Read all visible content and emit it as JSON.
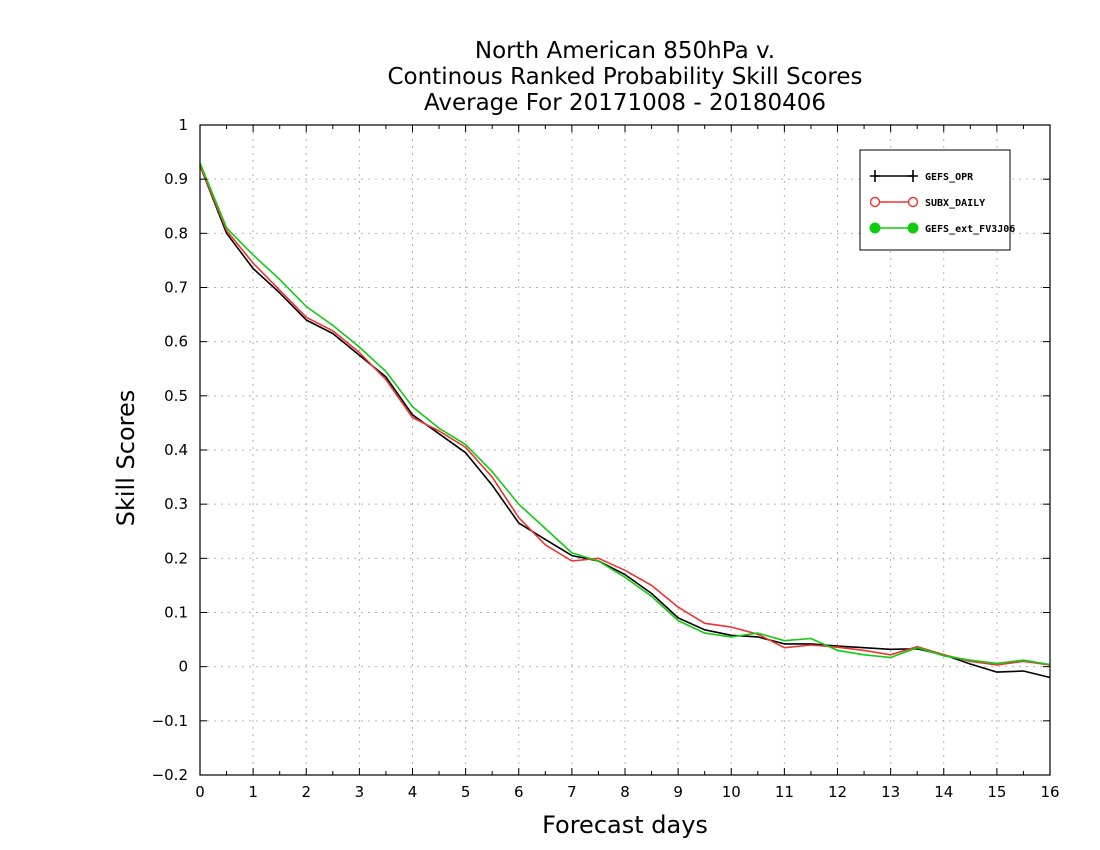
{
  "chart_data": {
    "type": "line",
    "title": [
      "North American 850hPa v.",
      "Continous Ranked Probability Skill Scores",
      "Average For 20171008 - 20180406"
    ],
    "xlabel": "Forecast days",
    "ylabel": "Skill Scores",
    "xlim": [
      0,
      16
    ],
    "ylim": [
      -0.2,
      1
    ],
    "xticks": [
      0,
      1,
      2,
      3,
      4,
      5,
      6,
      7,
      8,
      9,
      10,
      11,
      12,
      13,
      14,
      15,
      16
    ],
    "xtick_labels": [
      "0",
      "1",
      "2",
      "3",
      "4",
      "5",
      "6",
      "7",
      "8",
      "9",
      "10",
      "11",
      "12",
      "13",
      "14",
      "15",
      "16"
    ],
    "yticks": [
      -0.2,
      -0.1,
      0,
      0.1,
      0.2,
      0.3,
      0.4,
      0.5,
      0.6,
      0.7,
      0.8,
      0.9,
      1
    ],
    "ytick_labels": [
      "−0.2",
      "−0.1",
      "0",
      "0.1",
      "0.2",
      "0.3",
      "0.4",
      "0.5",
      "0.6",
      "0.7",
      "0.8",
      "0.9",
      "1"
    ],
    "grid": true,
    "legend_position": "top-right",
    "x": [
      0,
      0.5,
      1,
      1.5,
      2,
      2.5,
      3,
      3.5,
      4,
      4.5,
      5,
      5.5,
      6,
      6.5,
      7,
      7.5,
      8,
      8.5,
      9,
      9.5,
      10,
      10.5,
      11,
      11.5,
      12,
      12.5,
      13,
      13.5,
      14,
      14.5,
      15,
      15.5,
      16
    ],
    "series": [
      {
        "name": "GEFS_OPR",
        "color": "#000000",
        "marker": "plus",
        "values": [
          0.925,
          0.8,
          0.735,
          0.69,
          0.64,
          0.615,
          0.575,
          0.535,
          0.465,
          0.43,
          0.395,
          0.335,
          0.265,
          0.235,
          0.205,
          0.195,
          0.17,
          0.135,
          0.09,
          0.068,
          0.058,
          0.055,
          0.042,
          0.042,
          0.038,
          0.035,
          0.032,
          0.033,
          0.022,
          0.005,
          -0.01,
          -0.008,
          -0.02
        ]
      },
      {
        "name": "SUBX_DAILY",
        "color": "#ee3333",
        "marker": "open-circle",
        "values": [
          0.925,
          0.805,
          0.745,
          0.695,
          0.645,
          0.62,
          0.58,
          0.53,
          0.46,
          0.435,
          0.405,
          0.35,
          0.275,
          0.225,
          0.195,
          0.2,
          0.178,
          0.15,
          0.11,
          0.08,
          0.073,
          0.06,
          0.035,
          0.04,
          0.036,
          0.03,
          0.022,
          0.037,
          0.022,
          0.01,
          0.003,
          0.01,
          0.003
        ]
      },
      {
        "name": "GEFS_ext_FV3J06",
        "color": "#11cc11",
        "marker": "filled-circle",
        "values": [
          0.93,
          0.81,
          0.76,
          0.715,
          0.665,
          0.63,
          0.59,
          0.545,
          0.48,
          0.44,
          0.41,
          0.36,
          0.3,
          0.255,
          0.21,
          0.195,
          0.165,
          0.13,
          0.085,
          0.062,
          0.055,
          0.062,
          0.048,
          0.052,
          0.03,
          0.022,
          0.017,
          0.035,
          0.02,
          0.012,
          0.006,
          0.012,
          0.004
        ]
      }
    ]
  }
}
